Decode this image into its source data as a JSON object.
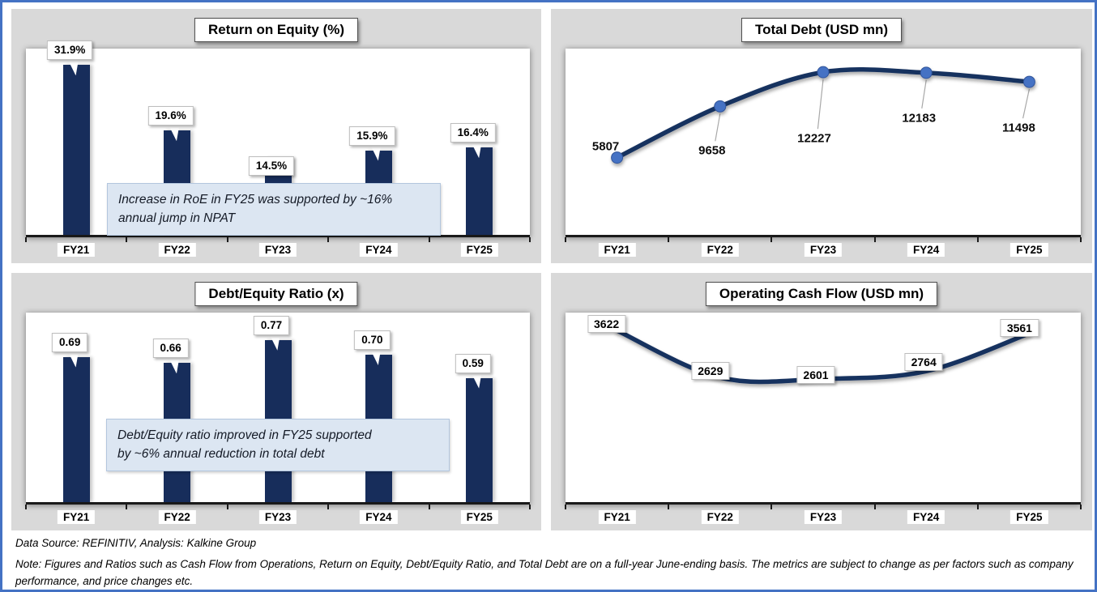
{
  "colors": {
    "frame": "#4472c4",
    "panel_bg": "#d9d9d9",
    "bar": "#172d5b",
    "line": "#17305f",
    "marker": "#4472c4",
    "annotation_bg": "#dce6f2",
    "axis": "#1a1a1a"
  },
  "chart_data": [
    {
      "id": "roe",
      "type": "bar",
      "title": "Return on Equity (%)",
      "categories": [
        "FY21",
        "FY22",
        "FY23",
        "FY24",
        "FY25"
      ],
      "values": [
        31.9,
        19.6,
        14.5,
        15.9,
        16.4
      ],
      "labels": [
        "31.9%",
        "19.6%",
        "14.5%",
        "15.9%",
        "16.4%"
      ],
      "ylim": [
        0,
        35
      ],
      "grid": false,
      "annotation": "Increase in RoE in FY25 was supported by ~16%\nannual jump in NPAT"
    },
    {
      "id": "total-debt",
      "type": "line",
      "title": "Total Debt (USD mn)",
      "categories": [
        "FY21",
        "FY22",
        "FY23",
        "FY24",
        "FY25"
      ],
      "values": [
        5807,
        9658,
        12227,
        12183,
        11498
      ],
      "labels": [
        "5807",
        "9658",
        "12227",
        "12183",
        "11498"
      ],
      "ylim": [
        0,
        14000
      ],
      "grid": false,
      "markers": true
    },
    {
      "id": "de-ratio",
      "type": "bar",
      "title": "Debt/Equity Ratio (x)",
      "categories": [
        "FY21",
        "FY22",
        "FY23",
        "FY24",
        "FY25"
      ],
      "values": [
        0.69,
        0.66,
        0.77,
        0.7,
        0.59
      ],
      "labels": [
        "0.69",
        "0.66",
        "0.77",
        "0.70",
        "0.59"
      ],
      "ylim": [
        0,
        0.9
      ],
      "grid": false,
      "annotation": "Debt/Equity ratio improved in FY25 supported\nby ~6% annual reduction in total debt"
    },
    {
      "id": "ocf",
      "type": "line",
      "title": "Operating Cash Flow (USD mn)",
      "categories": [
        "FY21",
        "FY22",
        "FY23",
        "FY24",
        "FY25"
      ],
      "values": [
        3622,
        2629,
        2601,
        2764,
        3561
      ],
      "labels": [
        "3622",
        "2629",
        "2601",
        "2764",
        "3561"
      ],
      "ylim": [
        0,
        4000
      ],
      "grid": false,
      "markers": false
    }
  ],
  "footer": {
    "source": "Data Source: REFINITIV, Analysis: Kalkine Group",
    "note": "Note: Figures and Ratios such as Cash Flow from Operations, Return on Equity, Debt/Equity Ratio, and Total Debt are on a full-year June-ending basis. The metrics are subject to change as per factors such as company performance, and price changes etc."
  }
}
